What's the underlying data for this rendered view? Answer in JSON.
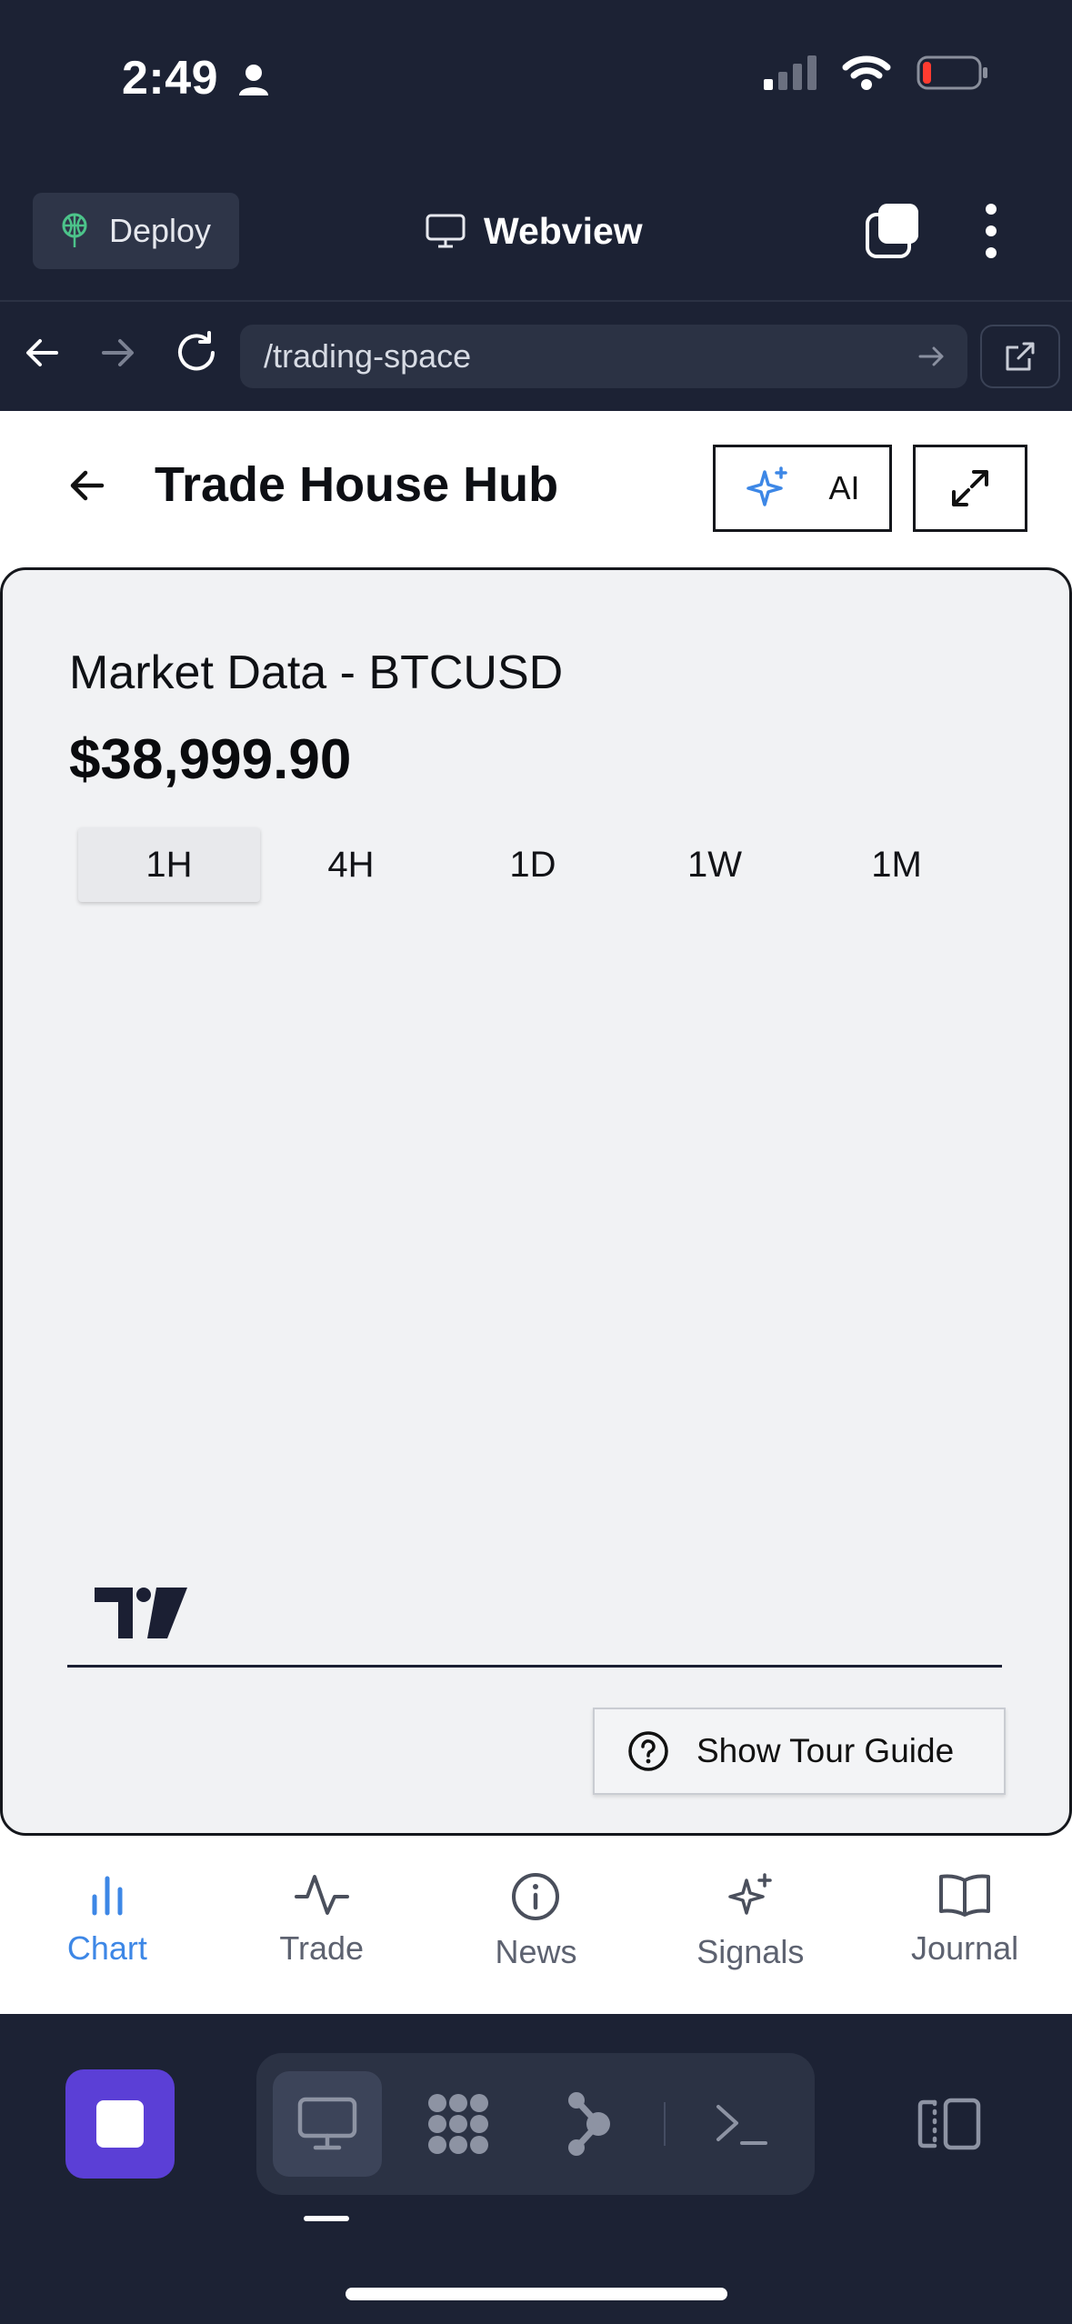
{
  "status_bar": {
    "time": "2:49",
    "battery_level": 0.15
  },
  "toolbar": {
    "deploy_label": "Deploy",
    "webview_label": "Webview"
  },
  "url_bar": {
    "url": "/trading-space"
  },
  "app": {
    "title": "Trade House Hub",
    "ai_label": "AI"
  },
  "market": {
    "title": "Market Data - BTCUSD",
    "price": "$38,999.90",
    "timeframes": [
      "1H",
      "4H",
      "1D",
      "1W",
      "1M"
    ],
    "active_timeframe": "1H"
  },
  "tour_button": {
    "label": "Show Tour Guide"
  },
  "tabs": [
    {
      "label": "Chart",
      "icon": "bar-chart-icon",
      "active": true
    },
    {
      "label": "Trade",
      "icon": "activity-icon",
      "active": false
    },
    {
      "label": "News",
      "icon": "info-icon",
      "active": false
    },
    {
      "label": "Signals",
      "icon": "sparkles-icon",
      "active": false
    },
    {
      "label": "Journal",
      "icon": "book-icon",
      "active": false
    }
  ],
  "colors": {
    "accent": "#3d87e6",
    "dock_stop": "#5b3fd6",
    "background": "#1c2234",
    "deploy_icon": "#4cc38a",
    "ai_icon": "#3d87e6"
  }
}
